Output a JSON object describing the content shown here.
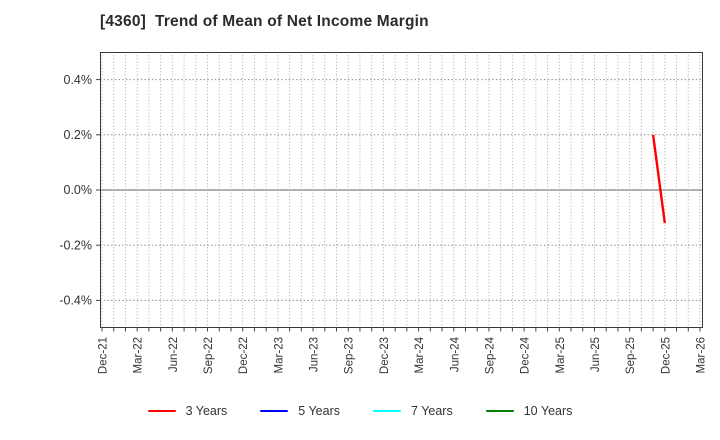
{
  "chart_data": {
    "type": "line",
    "title": "[4360]  Trend of Mean of Net Income Margin",
    "xlabel": "",
    "ylabel": "",
    "x_tick_labels": [
      "Dec-21",
      "Mar-22",
      "Jun-22",
      "Sep-22",
      "Dec-22",
      "Mar-23",
      "Jun-23",
      "Sep-23",
      "Dec-23",
      "Mar-24",
      "Jun-24",
      "Sep-24",
      "Dec-24",
      "Mar-25",
      "Jun-25",
      "Sep-25",
      "Dec-25",
      "Mar-26"
    ],
    "months_per_tick": 3,
    "total_months": 51,
    "y_ticks": [
      {
        "label": "0.4%",
        "value": 0.4
      },
      {
        "label": "0.2%",
        "value": 0.2
      },
      {
        "label": "0.0%",
        "value": 0.0
      },
      {
        "label": "-0.2%",
        "value": -0.2
      },
      {
        "label": "-0.4%",
        "value": -0.4
      }
    ],
    "ylim": [
      -0.5,
      0.5
    ],
    "grid": "monthly-dotted-vertical, dotted-horizontal-at-ticks",
    "zero_line": true,
    "legend_position": "bottom",
    "series": [
      {
        "name": "3 Years",
        "color": "#ff0000",
        "points": [
          {
            "x_label": "Nov-25",
            "month_index": 47,
            "value": 0.2
          },
          {
            "x_label": "Dec-25",
            "month_index": 48,
            "value": -0.12
          }
        ]
      },
      {
        "name": "5 Years",
        "color": "#0000ff",
        "points": []
      },
      {
        "name": "7 Years",
        "color": "#00ffff",
        "points": []
      },
      {
        "name": "10 Years",
        "color": "#008000",
        "points": []
      }
    ],
    "colors": {
      "plot_border": "#3a3a3a",
      "grid_vertical": "#aaaaaa",
      "grid_horizontal": "#8f8f8f",
      "zero_line": "#808080",
      "tick_text": "#333333",
      "background": "#ffffff"
    }
  }
}
